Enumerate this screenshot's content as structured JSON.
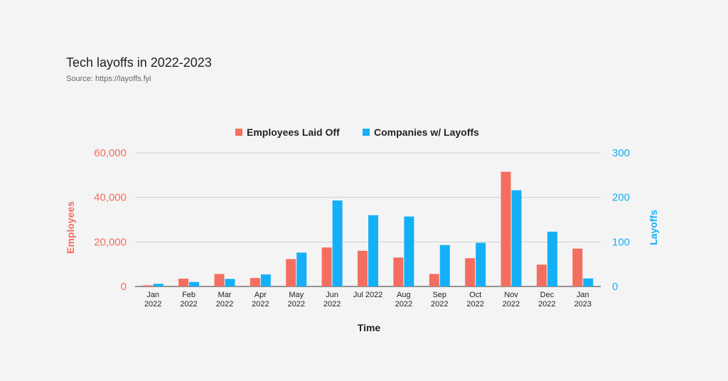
{
  "header": {
    "title": "Tech layoffs in 2022-2023",
    "subtitle": "Source: https://layoffs.fyi"
  },
  "colors": {
    "employees": "#f46e5f",
    "companies": "#14b0f7",
    "grid": "#d0d0d0",
    "axis": "#333333"
  },
  "chart_data": {
    "type": "bar",
    "categories": [
      [
        "Jan",
        "2022"
      ],
      [
        "Feb",
        "2022"
      ],
      [
        "Mar",
        "2022"
      ],
      [
        "Apr",
        "2022"
      ],
      [
        "May",
        "2022"
      ],
      [
        "Jun",
        "2022"
      ],
      [
        "Jul 2022"
      ],
      [
        "Aug",
        "2022"
      ],
      [
        "Sep",
        "2022"
      ],
      [
        "Oct",
        "2022"
      ],
      [
        "Nov",
        "2022"
      ],
      [
        "Dec",
        "2022"
      ],
      [
        "Jan",
        "2023"
      ]
    ],
    "series": [
      {
        "name": "Employees Laid Off",
        "axis": "left",
        "values": [
          500,
          3500,
          5600,
          3800,
          12300,
          17500,
          16000,
          13000,
          5600,
          12700,
          51500,
          9800,
          17000
        ]
      },
      {
        "name": "Companies w/ Layoffs",
        "axis": "right",
        "values": [
          6,
          10,
          17,
          27,
          76,
          193,
          160,
          157,
          93,
          98,
          216,
          123,
          18
        ]
      }
    ],
    "xlabel": "Time",
    "ylabel_left": "Employees",
    "ylabel_right": "Layoffs",
    "ylim_left": [
      0,
      60000
    ],
    "ylim_right": [
      0,
      300
    ],
    "yticks_left": [
      "0",
      "20,000",
      "40,000",
      "60,000"
    ],
    "yticks_right": [
      "0",
      "100",
      "200",
      "300"
    ],
    "legend_position": "top-center",
    "grid": true
  }
}
